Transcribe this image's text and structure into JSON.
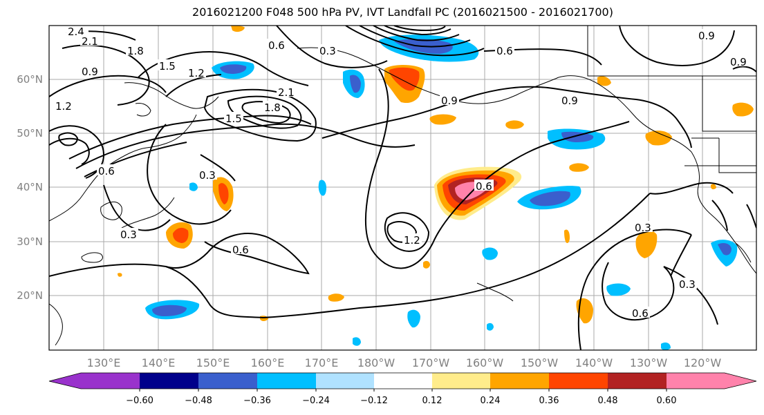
{
  "title": "2016021200 F048 500 hPa PV, IVT Landfall PC (2016021500 - 2016021700)",
  "map": {
    "lat_labels": [
      "60°N",
      "50°N",
      "40°N",
      "30°N",
      "20°N"
    ],
    "lon_labels": [
      "130°E",
      "140°E",
      "150°E",
      "160°E",
      "170°E",
      "180°W",
      "170°W",
      "160°W",
      "150°W",
      "140°W",
      "130°W",
      "120°W"
    ],
    "contour_labels": [
      "2.4",
      "2.1",
      "1.8",
      "1.5",
      "1.2",
      "0.9",
      "0.6",
      "0.3",
      "1.8",
      "2.1",
      "1.5",
      "1.2",
      "0.9",
      "0.6",
      "0.3",
      "0.9",
      "0.9",
      "0.6",
      "1.2",
      "0.3",
      "0.6",
      "0.3",
      "0.6",
      "0.3",
      "0.9",
      "0.6"
    ]
  },
  "colorbar": {
    "ticks": [
      "−0.60",
      "−0.48",
      "−0.36",
      "−0.24",
      "−0.12",
      "0.12",
      "0.24",
      "0.36",
      "0.48",
      "0.60"
    ],
    "colors": [
      "#9932CC",
      "#00008B",
      "#3A5FCD",
      "#00BFFF",
      "#B0E2FF",
      "#FFFFFF",
      "#FFEC8B",
      "#FFA500",
      "#FF4500",
      "#B22222",
      "#FF82AB"
    ]
  }
}
